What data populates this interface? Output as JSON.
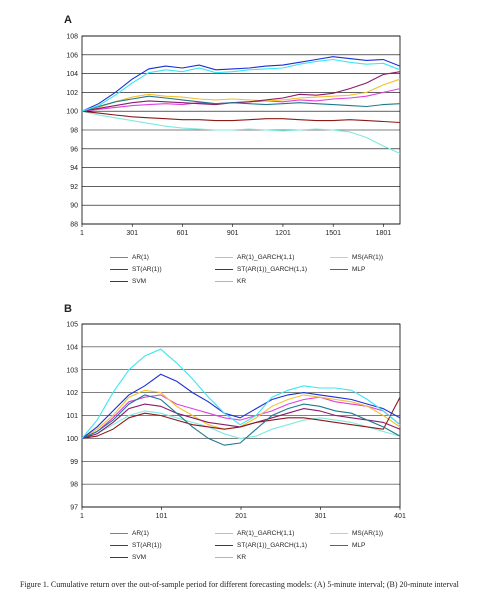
{
  "caption": "Figure 1. Cumulative return over the out-of-sample period for different forecasting models: (A) 5-minute interval; (B) 20-minute interval",
  "legend_colors": {
    "AR(1)": "#e040e0",
    "AR(1)_GARCH(1,1)": "#f2c12e",
    "MS(AR(1))": "#7fe9e0",
    "ST(AR(1))": "#8b1a6b",
    "ST(AR(1))_GARCH(1,1)": "#8b1a1a",
    "MLP": "#1f7a8c",
    "SVM": "#1a2fd6",
    "KR": "#3de6f0"
  },
  "chart_data": [
    {
      "panel": "A",
      "type": "line",
      "xlim": [
        1,
        1900
      ],
      "x_ticks": [
        "1",
        "301",
        "601",
        "901",
        "1201",
        "1501",
        "1801"
      ],
      "x_tick_values": [
        1,
        301,
        601,
        901,
        1201,
        1501,
        1801
      ],
      "ylim": [
        88,
        108
      ],
      "y_ticks": [
        88,
        90,
        92,
        94,
        96,
        98,
        100,
        102,
        104,
        106,
        108
      ],
      "grid": true,
      "legend_placement": "below",
      "x": [
        1,
        100,
        200,
        300,
        400,
        500,
        600,
        700,
        800,
        900,
        1000,
        1100,
        1200,
        1300,
        1400,
        1500,
        1600,
        1700,
        1800,
        1900
      ],
      "series": [
        {
          "name": "AR(1)",
          "values": [
            100,
            100.2,
            100.4,
            100.6,
            100.7,
            100.8,
            100.7,
            100.9,
            100.8,
            100.9,
            101.0,
            101.1,
            101.0,
            101.2,
            101.1,
            101.3,
            101.4,
            101.6,
            102.0,
            102.4
          ]
        },
        {
          "name": "AR(1)_GARCH(1,1)",
          "values": [
            100,
            100.4,
            101.0,
            101.5,
            101.8,
            101.6,
            101.5,
            101.3,
            101.2,
            101.3,
            101.2,
            101.1,
            101.2,
            101.4,
            101.5,
            101.6,
            101.7,
            102.0,
            102.8,
            103.4
          ]
        },
        {
          "name": "MS(AR(1))",
          "values": [
            100,
            99.6,
            99.3,
            99.0,
            98.7,
            98.4,
            98.2,
            98.1,
            98.0,
            98.0,
            98.1,
            98.0,
            97.9,
            98.0,
            98.1,
            98.0,
            97.8,
            97.2,
            96.3,
            95.5
          ]
        },
        {
          "name": "ST(AR(1))",
          "values": [
            100,
            100.3,
            100.6,
            100.9,
            101.1,
            101.0,
            100.9,
            100.8,
            100.7,
            100.9,
            101.0,
            101.2,
            101.4,
            101.8,
            101.7,
            101.9,
            102.4,
            103.0,
            103.9,
            104.2
          ]
        },
        {
          "name": "ST(AR(1))_GARCH(1,1)",
          "values": [
            100,
            99.8,
            99.6,
            99.4,
            99.3,
            99.2,
            99.1,
            99.1,
            99.0,
            99.0,
            99.1,
            99.2,
            99.2,
            99.1,
            99.0,
            99.0,
            99.1,
            99.0,
            98.9,
            98.8
          ]
        },
        {
          "name": "MLP",
          "values": [
            100,
            100.5,
            101.0,
            101.3,
            101.6,
            101.4,
            101.2,
            101.0,
            100.8,
            100.9,
            100.8,
            100.7,
            100.8,
            100.9,
            100.8,
            100.7,
            100.6,
            100.5,
            100.7,
            100.8
          ]
        },
        {
          "name": "SVM",
          "values": [
            100,
            100.8,
            102.0,
            103.4,
            104.5,
            104.8,
            104.6,
            104.9,
            104.4,
            104.5,
            104.6,
            104.8,
            104.9,
            105.2,
            105.5,
            105.8,
            105.6,
            105.4,
            105.5,
            104.8
          ]
        },
        {
          "name": "KR",
          "values": [
            100,
            100.6,
            101.7,
            103.0,
            104.1,
            104.4,
            104.2,
            104.6,
            104.1,
            104.2,
            104.4,
            104.5,
            104.6,
            105.0,
            105.3,
            105.5,
            105.2,
            105.0,
            105.1,
            104.4
          ]
        }
      ]
    },
    {
      "panel": "B",
      "type": "line",
      "xlim": [
        1,
        401
      ],
      "x_ticks": [
        "1",
        "101",
        "201",
        "301",
        "401"
      ],
      "x_tick_values": [
        1,
        101,
        201,
        301,
        401
      ],
      "ylim": [
        97,
        105
      ],
      "y_ticks": [
        97,
        98,
        99,
        100,
        101,
        102,
        103,
        104,
        105
      ],
      "grid": true,
      "legend_placement": "below",
      "x": [
        1,
        20,
        40,
        60,
        80,
        100,
        120,
        140,
        160,
        180,
        200,
        220,
        240,
        260,
        280,
        300,
        320,
        340,
        360,
        380,
        401
      ],
      "series": [
        {
          "name": "AR(1)",
          "values": [
            100,
            100.3,
            100.9,
            101.6,
            101.8,
            101.9,
            101.5,
            101.3,
            101.1,
            100.9,
            100.8,
            101.0,
            101.2,
            101.5,
            101.7,
            101.8,
            101.6,
            101.5,
            101.4,
            101.2,
            100.6
          ]
        },
        {
          "name": "AR(1)_GARCH(1,1)",
          "values": [
            100,
            100.4,
            101.0,
            101.8,
            102.1,
            102.0,
            101.4,
            101.0,
            100.6,
            100.4,
            100.5,
            100.9,
            101.4,
            101.7,
            101.9,
            101.8,
            101.7,
            101.6,
            101.4,
            101.0,
            100.5
          ]
        },
        {
          "name": "MS(AR(1))",
          "values": [
            100,
            100.2,
            100.6,
            101.0,
            101.2,
            101.1,
            100.9,
            100.7,
            100.5,
            100.2,
            100.0,
            100.1,
            100.4,
            100.6,
            100.8,
            100.9,
            100.8,
            100.7,
            100.5,
            100.3,
            100.1
          ]
        },
        {
          "name": "ST(AR(1))",
          "values": [
            100,
            100.2,
            100.7,
            101.3,
            101.5,
            101.4,
            101.1,
            100.9,
            100.7,
            100.6,
            100.5,
            100.7,
            100.9,
            101.1,
            101.3,
            101.2,
            101.0,
            100.9,
            100.8,
            100.7,
            100.4
          ]
        },
        {
          "name": "ST(AR(1))_GARCH(1,1)",
          "values": [
            100,
            100.1,
            100.4,
            100.9,
            101.1,
            101.0,
            100.8,
            100.6,
            100.5,
            100.4,
            100.5,
            100.7,
            100.8,
            100.9,
            100.9,
            100.8,
            100.7,
            100.6,
            100.5,
            100.4,
            101.8
          ]
        },
        {
          "name": "MLP",
          "values": [
            100,
            100.3,
            100.8,
            101.5,
            101.9,
            101.7,
            101.1,
            100.5,
            100.0,
            99.7,
            99.8,
            100.4,
            101.0,
            101.3,
            101.5,
            101.4,
            101.2,
            101.1,
            100.8,
            100.5,
            100.1
          ]
        },
        {
          "name": "SVM",
          "values": [
            100,
            100.5,
            101.2,
            101.9,
            102.3,
            102.8,
            102.5,
            102.0,
            101.6,
            101.1,
            100.9,
            101.3,
            101.7,
            101.9,
            102.0,
            101.9,
            101.8,
            101.7,
            101.5,
            101.3,
            100.9
          ]
        },
        {
          "name": "KR",
          "values": [
            100,
            100.8,
            102.0,
            103.0,
            103.6,
            103.9,
            103.3,
            102.6,
            101.8,
            101.1,
            100.6,
            101.0,
            101.8,
            102.1,
            102.3,
            102.2,
            102.2,
            102.1,
            101.7,
            101.2,
            100.6
          ]
        }
      ]
    }
  ]
}
